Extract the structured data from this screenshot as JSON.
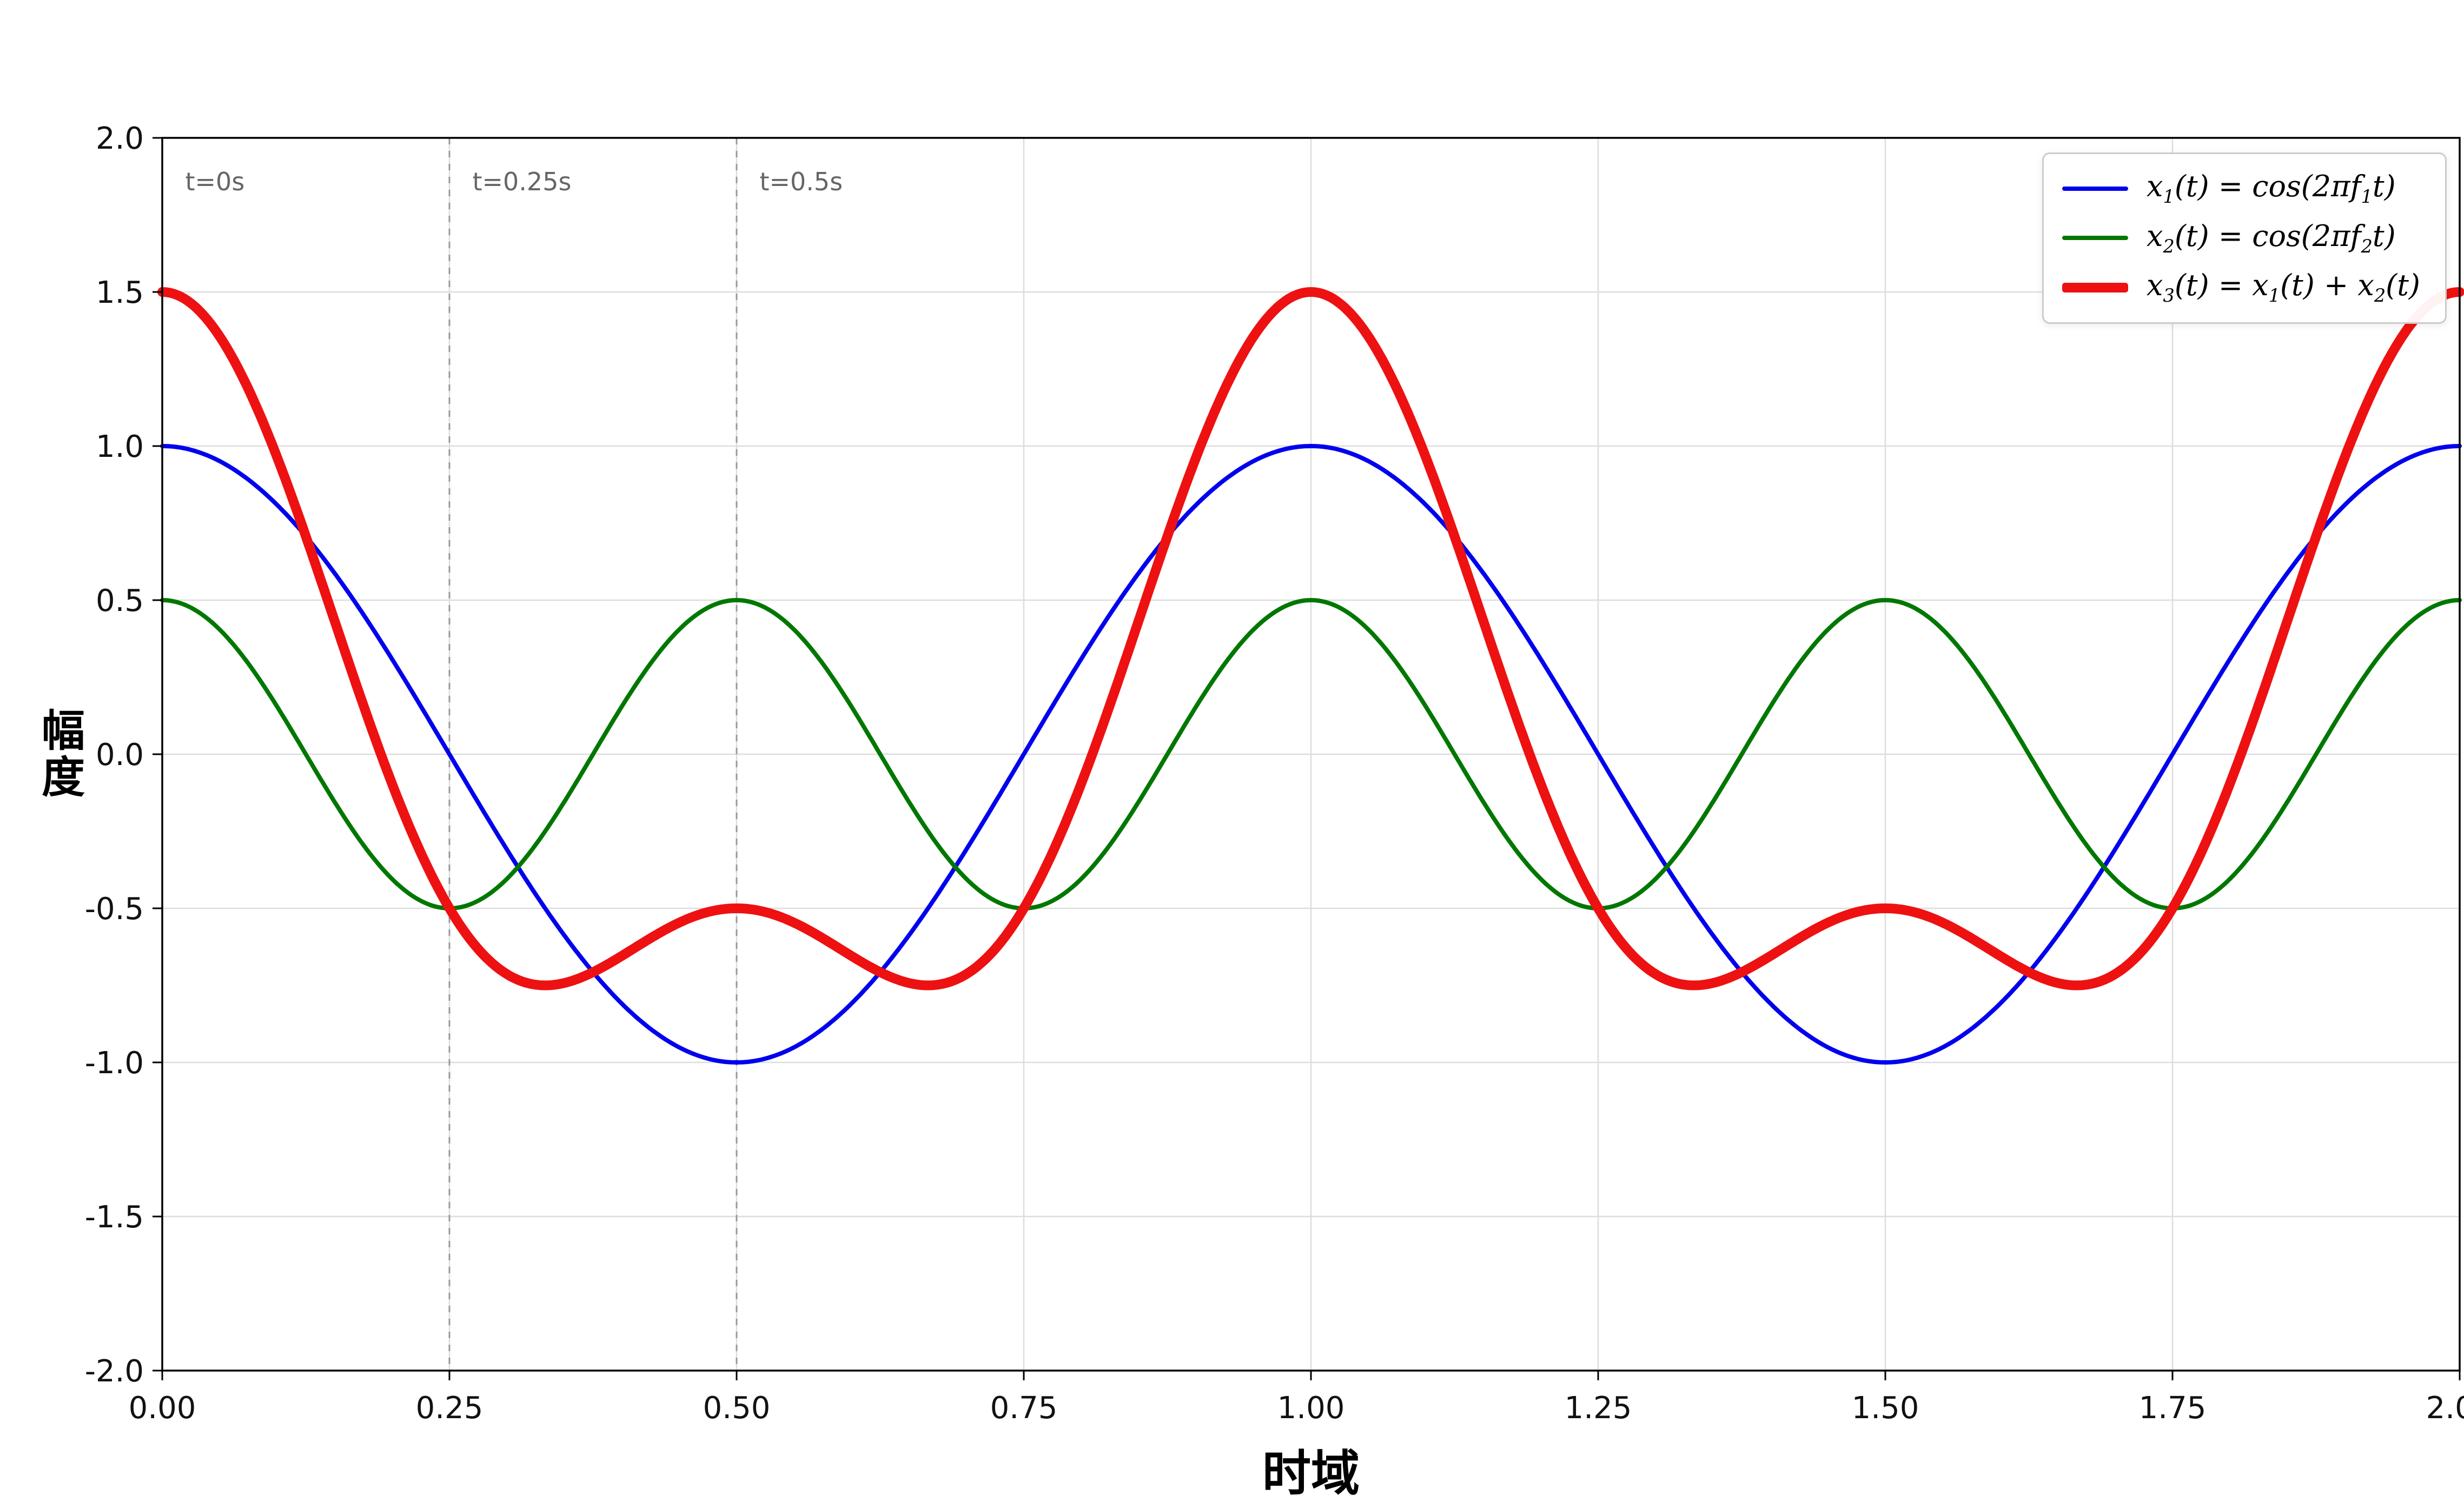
{
  "chart_data": {
    "type": "line",
    "title": "",
    "xlabel": "时域",
    "ylabel": "幅度",
    "xlim": [
      0.0,
      2.0
    ],
    "ylim": [
      -2.0,
      2.0
    ],
    "xticks": [
      "0.00",
      "0.25",
      "0.50",
      "0.75",
      "1.00",
      "1.25",
      "1.50",
      "1.75",
      "2.00"
    ],
    "yticks": [
      "-2.0",
      "-1.5",
      "-1.0",
      "-0.5",
      "0.0",
      "0.5",
      "1.0",
      "1.5",
      "2.0"
    ],
    "grid": true,
    "legend_position": "upper right",
    "series": [
      {
        "label": "x_1(t) = cos(2πf_1t)",
        "color": "#0000ee",
        "linewidth": 8,
        "signal": {
          "kind": "cosine",
          "amplitude": 1.0,
          "frequency_hz": 1.0,
          "phase": 0.0
        }
      },
      {
        "label": "x_2(t) = cos(2πf_2t)",
        "color": "#007700",
        "linewidth": 8,
        "signal": {
          "kind": "cosine",
          "amplitude": 0.5,
          "frequency_hz": 2.0,
          "phase": 0.0
        }
      },
      {
        "label": "x_3(t) = x_1(t) + x_2(t)",
        "color": "#ee1111",
        "linewidth": 18,
        "signal": {
          "kind": "sum",
          "of": [
            0,
            1
          ]
        }
      }
    ],
    "annotations": [
      {
        "text": "t=0s",
        "x": 0.02,
        "y": 1.83
      },
      {
        "text": "t=0.25s",
        "x": 0.27,
        "y": 1.83
      },
      {
        "text": "t=0.5s",
        "x": 0.52,
        "y": 1.83
      }
    ],
    "vlines": [
      {
        "x": 0.25,
        "style": "dashed",
        "color": "#999999"
      },
      {
        "x": 0.5,
        "style": "dashed",
        "color": "#999999"
      }
    ]
  },
  "colors": {
    "background": "#ffffff",
    "grid": "#dddddd",
    "spine": "#000000",
    "tick_label": "#111111",
    "annotation": "#666666",
    "legend_border": "#cccccc"
  }
}
